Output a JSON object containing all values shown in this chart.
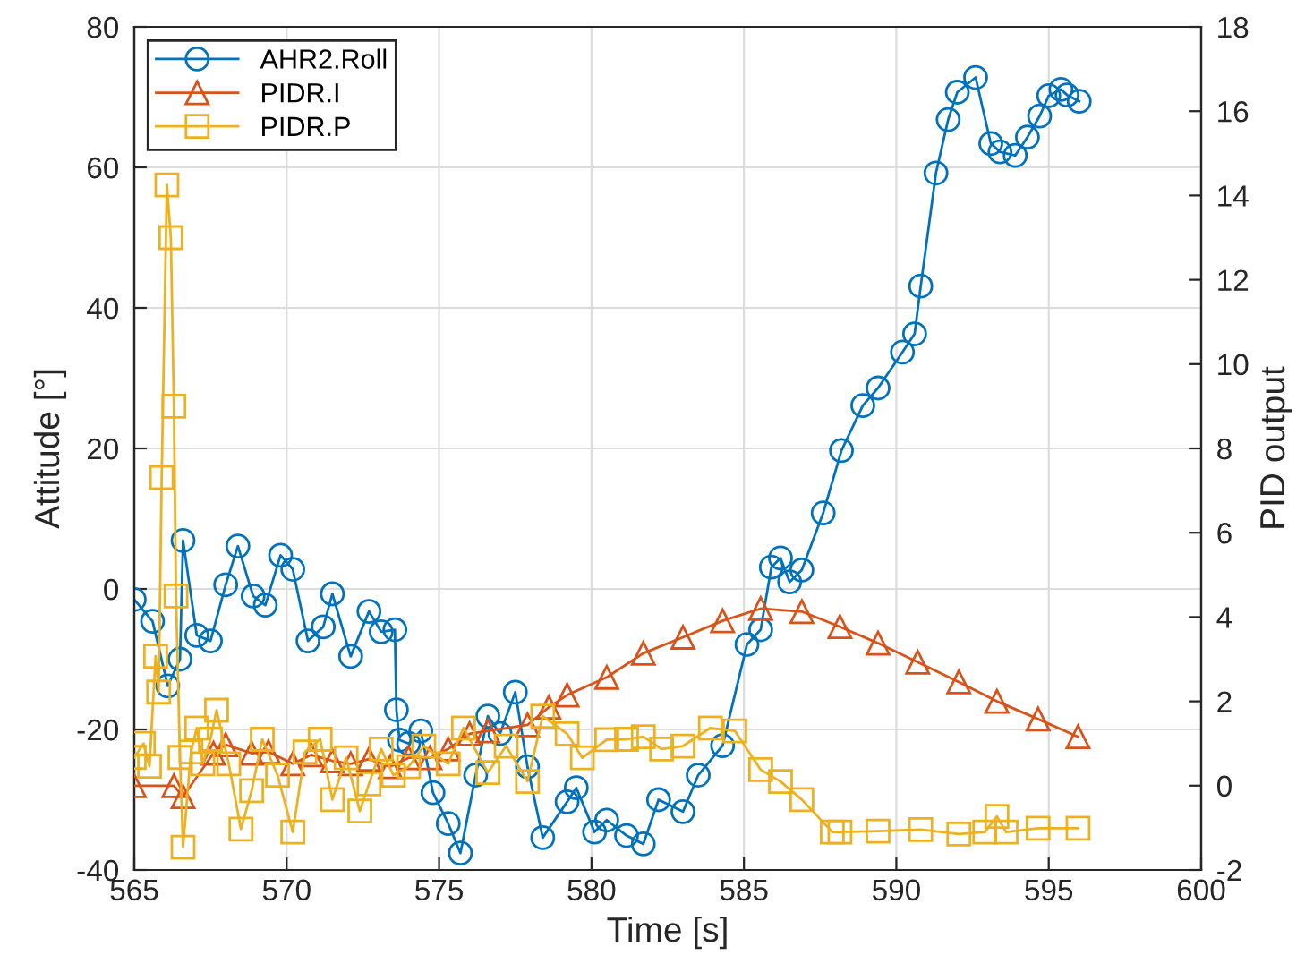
{
  "chart_data": {
    "type": "line",
    "xlabel": "Time [s]",
    "ylabel": "Attitude [°]",
    "y2label": "PID output",
    "xlim": [
      565,
      600
    ],
    "xticks": [
      565,
      570,
      575,
      580,
      585,
      590,
      595,
      600
    ],
    "ylim": [
      -40,
      80
    ],
    "yticks": [
      -40,
      -20,
      0,
      20,
      40,
      60,
      80
    ],
    "y2lim": [
      -2,
      18
    ],
    "y2ticks": [
      -2,
      0,
      2,
      4,
      6,
      8,
      10,
      12,
      14,
      16,
      18
    ],
    "grid": true,
    "legend": "top left",
    "line_style": "solid",
    "series": [
      {
        "name": "AHR2.Roll",
        "color": "#0072bd",
        "marker": "circle",
        "x": [
          565.0,
          565.6,
          566.1,
          566.5,
          566.6,
          567.05,
          567.5,
          568.0,
          568.4,
          568.9,
          569.3,
          569.8,
          570.2,
          570.7,
          571.2,
          571.5,
          572.1,
          572.7,
          573.1,
          573.55,
          573.6,
          573.7,
          574.0,
          574.4,
          574.8,
          575.3,
          575.7,
          576.2,
          576.6,
          577.0,
          577.5,
          577.9,
          578.4,
          579.2,
          579.5,
          580.1,
          580.5,
          581.15,
          581.7,
          582.2,
          583.0,
          583.5,
          584.3,
          585.1,
          585.55,
          585.9,
          586.2,
          586.5,
          586.9,
          587.6,
          588.2,
          588.9,
          589.4,
          590.2,
          590.6,
          590.8,
          591.3,
          591.7,
          592.0,
          592.6,
          593.1,
          593.4,
          593.9,
          594.3,
          594.7,
          595.0,
          595.4,
          595.6,
          596.0
        ],
        "values": [
          -1.5,
          -4.6,
          -13.8,
          -10,
          6.9,
          -6.6,
          -7.4,
          0.6,
          6.1,
          -1,
          -2.3,
          4.8,
          2.8,
          -7.4,
          -5.4,
          -0.7,
          -9.6,
          -3.2,
          -6.1,
          -5.8,
          -17.2,
          -21.5,
          -22,
          -20.2,
          -29,
          -33.4,
          -37.6,
          -26.5,
          -18.1,
          -20.6,
          -14.7,
          -25.3,
          -35.4,
          -30.3,
          -28.3,
          -34.6,
          -32.9,
          -35.1,
          -36.3,
          -30,
          -31.7,
          -26.5,
          -22.3,
          -7.9,
          -5.8,
          3.1,
          4.4,
          1,
          2.7,
          10.8,
          19.7,
          26.1,
          28.6,
          33.7,
          36.3,
          43.1,
          59.2,
          66.8,
          70.7,
          72.8,
          63.4,
          62.2,
          61.7,
          64.3,
          67.3,
          70.2,
          71.1,
          70.3,
          69.4
        ]
      },
      {
        "name": "PIDR.I",
        "color": "#d95319",
        "marker": "triangle",
        "axis": "y2",
        "x": [
          565.0,
          566.3,
          566.6,
          567.6,
          568.0,
          568.85,
          569.4,
          570.2,
          570.8,
          571.5,
          572.1,
          572.7,
          573.4,
          574.0,
          574.7,
          575.3,
          576.0,
          576.6,
          577.9,
          578.6,
          579.2,
          580.5,
          581.7,
          583.0,
          584.3,
          585.55,
          586.9,
          588.15,
          589.4,
          590.7,
          592.05,
          593.3,
          594.65,
          595.96
        ],
        "values": [
          0.0,
          0.0,
          -0.26,
          0.77,
          0.97,
          0.77,
          0.8,
          0.52,
          0.73,
          0.59,
          0.52,
          0.63,
          0.45,
          0.66,
          0.66,
          0.87,
          1.23,
          1.3,
          1.44,
          1.86,
          2.15,
          2.57,
          3.14,
          3.52,
          3.91,
          4.2,
          4.13,
          3.77,
          3.38,
          2.93,
          2.46,
          2.0,
          1.58,
          1.16
        ]
      },
      {
        "name": "PIDR.P",
        "color": "#edb120",
        "marker": "square",
        "axis": "y2",
        "x": [
          565.0,
          565.3,
          565.5,
          565.7,
          565.8,
          565.9,
          566.07,
          566.2,
          566.3,
          566.37,
          566.5,
          566.6,
          566.86,
          567.05,
          567.25,
          567.5,
          567.7,
          568.1,
          568.5,
          568.85,
          569.2,
          569.7,
          570.2,
          570.6,
          571.1,
          571.5,
          571.95,
          572.4,
          572.7,
          573.1,
          573.5,
          574.0,
          574.5,
          575.3,
          575.8,
          576.6,
          577.2,
          577.9,
          578.4,
          579.2,
          579.7,
          580.5,
          581.15,
          581.7,
          582.3,
          583.0,
          583.9,
          584.7,
          585.55,
          586.2,
          586.9,
          587.9,
          588.15,
          589.4,
          590.8,
          592.05,
          592.9,
          593.3,
          593.6,
          594.65,
          595.96
        ],
        "values": [
          0.67,
          1.0,
          0.46,
          3.07,
          2.22,
          7.31,
          14.25,
          13.0,
          9.0,
          4.5,
          0.67,
          -1.46,
          0.8,
          1.37,
          0.52,
          1.1,
          1.79,
          0.52,
          -1.03,
          -0.12,
          1.1,
          0.25,
          -1.1,
          0.8,
          1.1,
          -0.33,
          0.66,
          -0.6,
          0.04,
          0.87,
          0.25,
          0.45,
          0.94,
          0.52,
          1.37,
          0.31,
          0.94,
          0.1,
          1.65,
          1.23,
          0.66,
          1.09,
          1.1,
          1.16,
          0.87,
          0.94,
          1.37,
          1.3,
          0.38,
          0.1,
          -0.33,
          -1.1,
          -1.1,
          -1.08,
          -1.04,
          -1.15,
          -1.1,
          -0.73,
          -1.1,
          -1.01,
          -1.01
        ]
      }
    ]
  }
}
